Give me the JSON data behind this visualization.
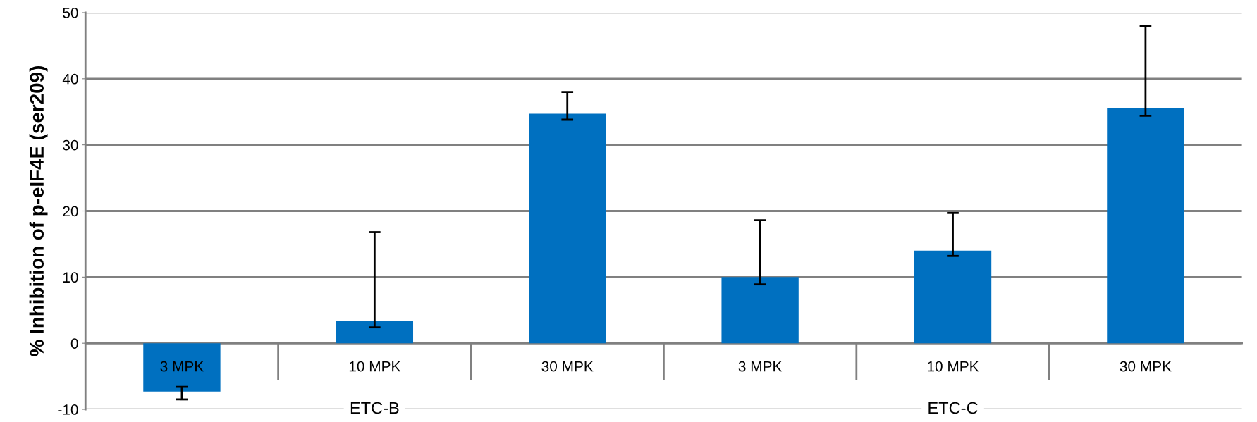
{
  "chart_data": {
    "type": "bar",
    "ylabel": "% Inhibition of p-eIF4E (ser209)",
    "categories": [
      "3 MPK",
      "10 MPK",
      "30 MPK",
      "3 MPK",
      "10 MPK",
      "30 MPK"
    ],
    "values": [
      -7.3,
      3.4,
      34.7,
      10.0,
      14.0,
      35.5
    ],
    "errors": [
      [
        -8.5,
        -6.6
      ],
      [
        2.4,
        16.8
      ],
      [
        33.8,
        38.0
      ],
      [
        8.9,
        18.6
      ],
      [
        13.2,
        19.7
      ],
      [
        34.4,
        48.0
      ]
    ],
    "color": "#0070c0",
    "annotations": [
      "ETC-B",
      "ETC-C"
    ],
    "ylim": [
      -10,
      50
    ],
    "yticks": [
      -10,
      0,
      10,
      20,
      30,
      40,
      50
    ],
    "grid": "y"
  }
}
